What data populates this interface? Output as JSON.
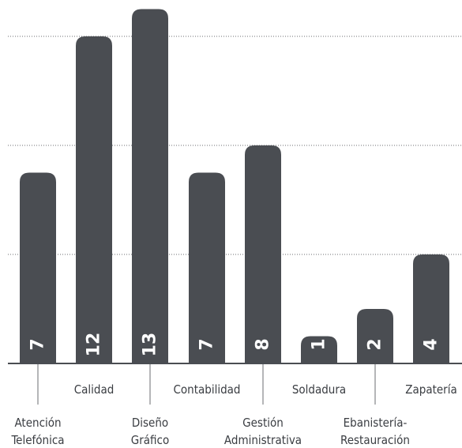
{
  "chart_data": {
    "type": "bar",
    "categories": [
      "Atención Telefónica",
      "Calidad",
      "Diseño Gráfico",
      "Contabilidad",
      "Gestión Administrativa",
      "Soldadura",
      "Ebanistería-Restauración",
      "Zapatería"
    ],
    "category_label_lines": [
      [
        "Atención",
        "Telefónica"
      ],
      [
        "Calidad"
      ],
      [
        "Diseño",
        "Gráfico"
      ],
      [
        "Contabilidad"
      ],
      [
        "Gestión",
        "Administrativa"
      ],
      [
        "Soldadura"
      ],
      [
        "Ebanistería-",
        "Restauración"
      ],
      [
        "Zapatería"
      ]
    ],
    "values": [
      7,
      12,
      13,
      7,
      8,
      1,
      2,
      4
    ],
    "data_labels": [
      "7",
      "12",
      "13",
      "7",
      "8",
      "1",
      "2",
      "4"
    ],
    "ylim": [
      0,
      13
    ],
    "gridlines": [
      4,
      8,
      12
    ],
    "grid": true,
    "bar_color": "#4a4d52"
  }
}
